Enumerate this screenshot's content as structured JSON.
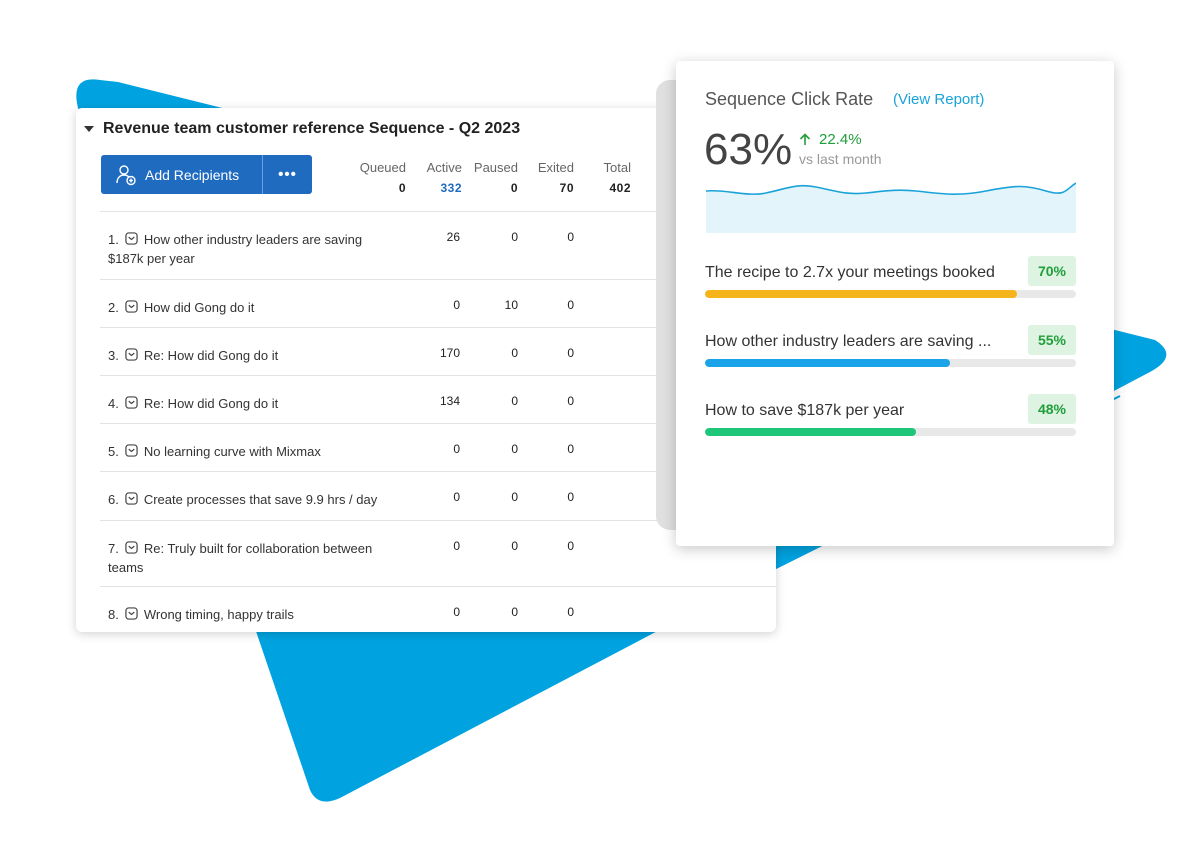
{
  "colors": {
    "accent_blue": "#00a3e0",
    "button_blue": "#1f6bc0",
    "success_green": "#1f9e3a",
    "bar_yellow": "#f4b41a",
    "bar_blue": "#1aa3e8",
    "bar_green": "#1ec67a"
  },
  "sequence": {
    "title": "Revenue team customer reference Sequence - Q2 2023",
    "add_recipients_label": "Add Recipients",
    "more_label": "•••",
    "stats": [
      {
        "label": "Queued",
        "value": "0"
      },
      {
        "label": "Active",
        "value": "332"
      },
      {
        "label": "Paused",
        "value": "0"
      },
      {
        "label": "Exited",
        "value": "70"
      },
      {
        "label": "Total",
        "value": "402"
      }
    ],
    "steps": [
      {
        "num": "1.",
        "subject": "How other industry leaders are saving $187k per year",
        "queued": "26",
        "active": "0",
        "paused": "0"
      },
      {
        "num": "2.",
        "subject": "How did Gong do it",
        "queued": "0",
        "active": "10",
        "paused": "0"
      },
      {
        "num": "3.",
        "subject": "Re: How did Gong do it",
        "queued": "170",
        "active": "0",
        "paused": "0"
      },
      {
        "num": "4.",
        "subject": "Re: How did Gong do it",
        "queued": "134",
        "active": "0",
        "paused": "0"
      },
      {
        "num": "5.",
        "subject": "No learning curve with Mixmax",
        "queued": "0",
        "active": "0",
        "paused": "0"
      },
      {
        "num": "6.",
        "subject": "Create processes that save 9.9 hrs / day",
        "queued": "0",
        "active": "0",
        "paused": "0"
      },
      {
        "num": "7.",
        "subject": "Re: Truly built for collaboration between teams",
        "queued": "0",
        "active": "0",
        "paused": "0"
      },
      {
        "num": "8.",
        "subject": "Wrong timing, happy trails",
        "queued": "0",
        "active": "0",
        "paused": "0"
      }
    ]
  },
  "click_rate": {
    "title": "Sequence Click Rate",
    "view_report_label": "(View Report)",
    "value": "63%",
    "delta": "22.4%",
    "delta_sub": "vs last month",
    "links": [
      {
        "label": "The recipe to 2.7x your meetings booked",
        "pct": "70%",
        "fraction": 0.84,
        "color": "#f4b41a"
      },
      {
        "label": "How other industry leaders are saving ...",
        "pct": "55%",
        "fraction": 0.66,
        "color": "#1aa3e8"
      },
      {
        "label": "How to save $187k per year",
        "pct": "48%",
        "fraction": 0.57,
        "color": "#1ec67a"
      }
    ]
  }
}
